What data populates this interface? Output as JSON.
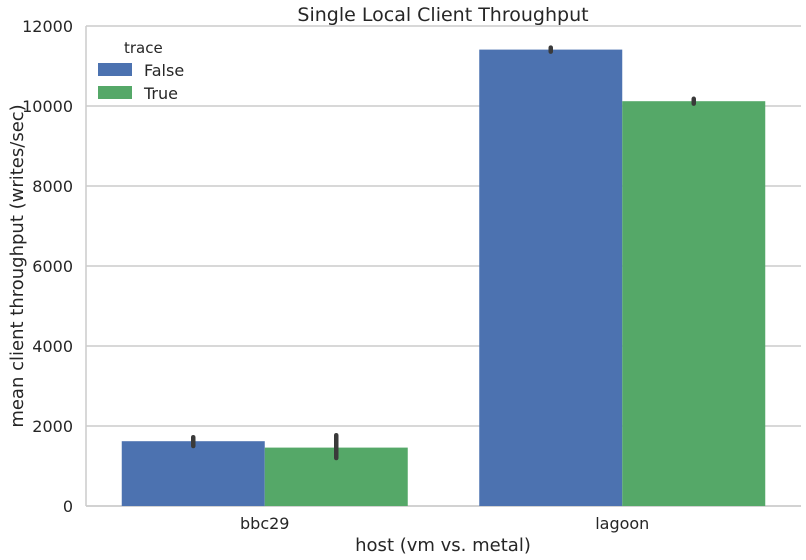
{
  "chart_data": {
    "type": "bar",
    "title": "Single Local Client Throughput",
    "xlabel": "host (vm vs. metal)",
    "ylabel": "mean client throughput (writes/sec)",
    "categories": [
      "bbc29",
      "lagoon"
    ],
    "ylim": [
      0,
      12000
    ],
    "yticks": [
      0,
      2000,
      4000,
      6000,
      8000,
      10000,
      12000
    ],
    "grid": "horizontal",
    "legend": {
      "title": "trace",
      "placement": "top-left"
    },
    "series": [
      {
        "name": "False",
        "color": "#4c72b0",
        "values": [
          1620,
          11410
        ],
        "error_ranges": [
          [
            1500,
            1720
          ],
          [
            11360,
            11460
          ]
        ]
      },
      {
        "name": "True",
        "color": "#55a868",
        "values": [
          1460,
          10120
        ],
        "error_ranges": [
          [
            1200,
            1770
          ],
          [
            10060,
            10180
          ]
        ]
      }
    ],
    "error_bar_color": "#3a3a3a"
  }
}
